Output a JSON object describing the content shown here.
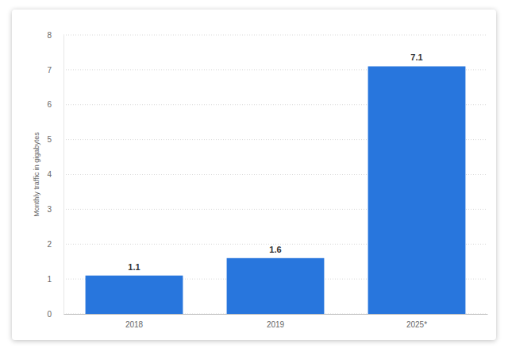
{
  "chart_data": {
    "type": "bar",
    "ylabel": "Monthly traffic in gigabytes",
    "categories": [
      "2018",
      "2019",
      "2025*"
    ],
    "values": [
      1.1,
      1.6,
      7.1
    ],
    "color": "#2876dd",
    "ylim": [
      0,
      8
    ],
    "yticks": [
      0,
      1,
      2,
      3,
      4,
      5,
      6,
      7,
      8
    ],
    "grid": true,
    "data_labels": true
  }
}
